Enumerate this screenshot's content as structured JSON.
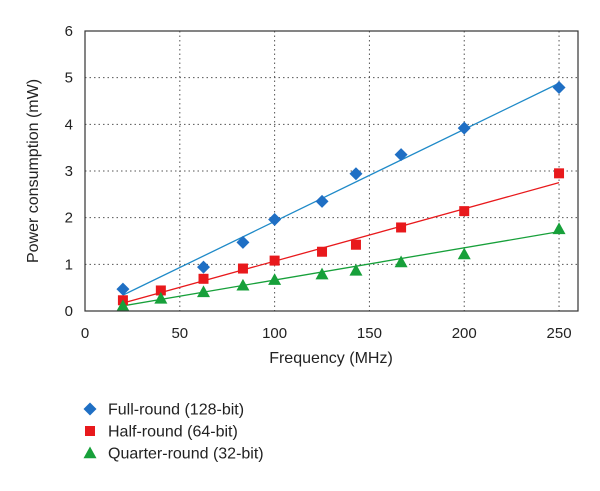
{
  "chart_data": {
    "type": "scatter",
    "xlabel": "Frequency (MHz)",
    "ylabel": "Power consumption (mW)",
    "xlim": [
      0,
      260
    ],
    "ylim": [
      0,
      6
    ],
    "xticks": [
      0,
      50,
      100,
      150,
      200,
      250
    ],
    "yticks": [
      0,
      1,
      2,
      3,
      4,
      5,
      6
    ],
    "grid": "dotted",
    "legend_position": "bottom",
    "series": [
      {
        "name": "Full-round (128-bit)",
        "marker": "diamond",
        "color": "#1f6fc4",
        "line_color": "#1f8ac8",
        "x": [
          20,
          62.5,
          83.3,
          100,
          125,
          142.9,
          166.7,
          200,
          250
        ],
        "y": [
          0.47,
          0.94,
          1.47,
          1.96,
          2.35,
          2.94,
          3.35,
          3.92,
          4.79
        ],
        "trend": {
          "x": [
            20,
            250
          ],
          "y": [
            0.34,
            4.88
          ]
        }
      },
      {
        "name": "Half-round (64-bit)",
        "marker": "square",
        "color": "#e8191c",
        "line_color": "#e8191c",
        "x": [
          20,
          40,
          62.5,
          83.3,
          100,
          125,
          142.9,
          166.7,
          200,
          250
        ],
        "y": [
          0.23,
          0.44,
          0.69,
          0.91,
          1.08,
          1.27,
          1.42,
          1.79,
          2.14,
          2.95
        ],
        "trend": {
          "x": [
            20,
            250
          ],
          "y": [
            0.17,
            2.75
          ]
        }
      },
      {
        "name": "Quarter-round (32-bit)",
        "marker": "triangle",
        "color": "#17a03a",
        "line_color": "#17a03a",
        "x": [
          20,
          40,
          62.5,
          83.3,
          100,
          125,
          142.9,
          166.7,
          200,
          250
        ],
        "y": [
          0.11,
          0.27,
          0.41,
          0.55,
          0.67,
          0.79,
          0.87,
          1.05,
          1.22,
          1.76
        ],
        "trend": {
          "x": [
            20,
            250
          ],
          "y": [
            0.11,
            1.7
          ]
        }
      }
    ]
  }
}
